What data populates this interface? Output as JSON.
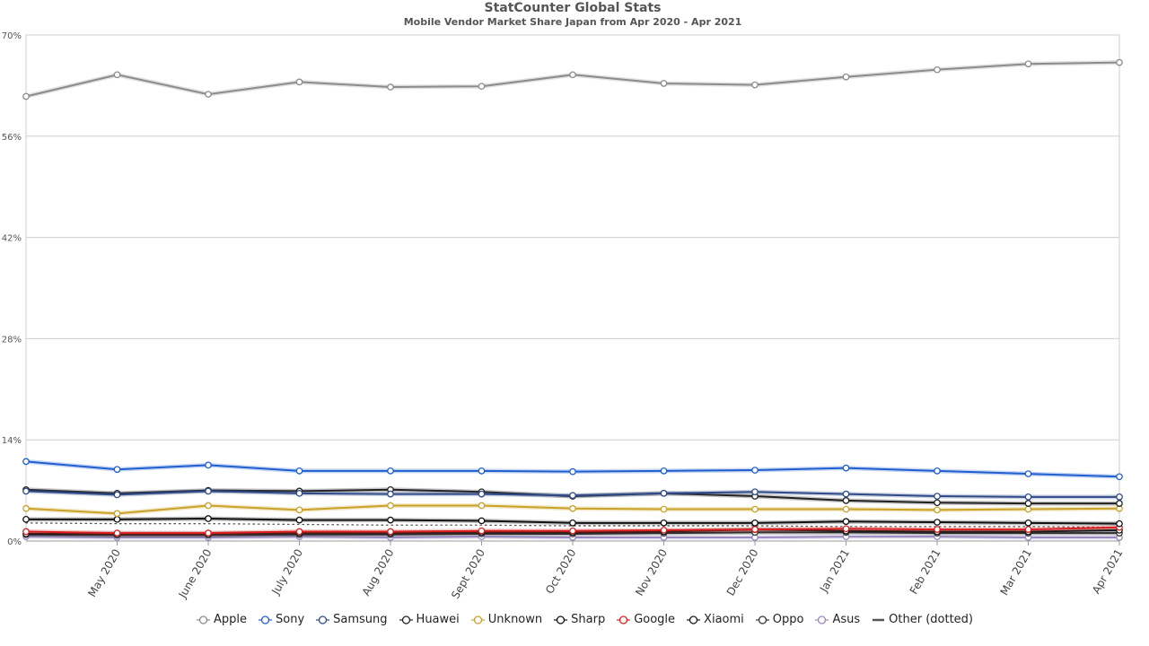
{
  "chart_data": {
    "type": "line",
    "title": "StatCounter Global Stats",
    "subtitle": "Mobile Vendor Market Share Japan from Apr 2020 - Apr 2021",
    "xlabel": "",
    "ylabel": "",
    "ylim": [
      0,
      70
    ],
    "y_ticks": [
      "0%",
      "14%",
      "28%",
      "42%",
      "56%",
      "70%"
    ],
    "y_tick_values": [
      0,
      14,
      28,
      42,
      56,
      70
    ],
    "categories": [
      "Apr 2020",
      "May 2020",
      "June 2020",
      "July 2020",
      "Aug 2020",
      "Sept 2020",
      "Oct 2020",
      "Nov 2020",
      "Dec 2020",
      "Jan 2021",
      "Feb 2021",
      "Mar 2021",
      "Apr 2021"
    ],
    "x_tick_labels": [
      "May 2020",
      "June 2020",
      "July 2020",
      "Aug 2020",
      "Sept 2020",
      "Oct 2020",
      "Nov 2020",
      "Dec 2020",
      "Jan 2021",
      "Feb 2021",
      "Mar 2021",
      "Apr 2021"
    ],
    "grid": true,
    "legend_position": "bottom",
    "series": [
      {
        "name": "Apple",
        "color": "#8c8c8c",
        "values": [
          61.5,
          64.5,
          61.8,
          63.5,
          62.8,
          62.9,
          64.5,
          63.3,
          63.1,
          64.2,
          65.2,
          66.0,
          66.2
        ]
      },
      {
        "name": "Sony",
        "color": "#1f5fd0",
        "values": [
          11.0,
          9.9,
          10.5,
          9.7,
          9.7,
          9.7,
          9.6,
          9.7,
          9.8,
          10.1,
          9.7,
          9.3,
          8.9
        ]
      },
      {
        "name": "Samsung",
        "color": "#304a88",
        "values": [
          6.9,
          6.4,
          6.9,
          6.6,
          6.5,
          6.5,
          6.3,
          6.6,
          6.8,
          6.5,
          6.2,
          6.1,
          6.1
        ]
      },
      {
        "name": "Huawei",
        "color": "#222222",
        "values": [
          7.1,
          6.6,
          7.0,
          6.9,
          7.1,
          6.8,
          6.2,
          6.6,
          6.2,
          5.6,
          5.3,
          5.2,
          5.2
        ]
      },
      {
        "name": "Unknown",
        "color": "#c9a227",
        "values": [
          4.5,
          3.8,
          4.9,
          4.3,
          4.9,
          4.9,
          4.5,
          4.4,
          4.4,
          4.4,
          4.3,
          4.4,
          4.5
        ]
      },
      {
        "name": "Sharp",
        "color": "#111111",
        "values": [
          3.0,
          3.0,
          3.1,
          2.9,
          2.9,
          2.8,
          2.5,
          2.5,
          2.5,
          2.7,
          2.6,
          2.5,
          2.4
        ]
      },
      {
        "name": "Google",
        "color": "#d91f1f",
        "values": [
          1.3,
          1.1,
          1.1,
          1.3,
          1.3,
          1.4,
          1.4,
          1.5,
          1.6,
          1.7,
          1.6,
          1.6,
          1.9
        ]
      },
      {
        "name": "Xiaomi",
        "color": "#1a1a1a",
        "values": [
          1.0,
          1.0,
          1.0,
          1.1,
          1.1,
          1.2,
          1.2,
          1.3,
          1.6,
          1.4,
          1.3,
          1.3,
          1.5
        ]
      },
      {
        "name": "Oppo",
        "color": "#333333",
        "values": [
          0.9,
          0.8,
          0.8,
          0.9,
          0.9,
          1.0,
          1.0,
          1.1,
          1.2,
          1.2,
          1.1,
          1.1,
          1.1
        ]
      },
      {
        "name": "Asus",
        "color": "#9a88c0",
        "values": [
          0.6,
          0.5,
          0.5,
          0.6,
          0.5,
          0.6,
          0.5,
          0.5,
          0.5,
          0.6,
          0.6,
          0.5,
          0.5
        ]
      },
      {
        "name": "Other (dotted)",
        "color": "#555555",
        "dotted": true,
        "values": [
          2.5,
          2.4,
          2.4,
          2.3,
          2.2,
          2.2,
          2.1,
          2.1,
          2.1,
          2.0,
          2.0,
          2.0,
          1.9
        ]
      }
    ]
  }
}
